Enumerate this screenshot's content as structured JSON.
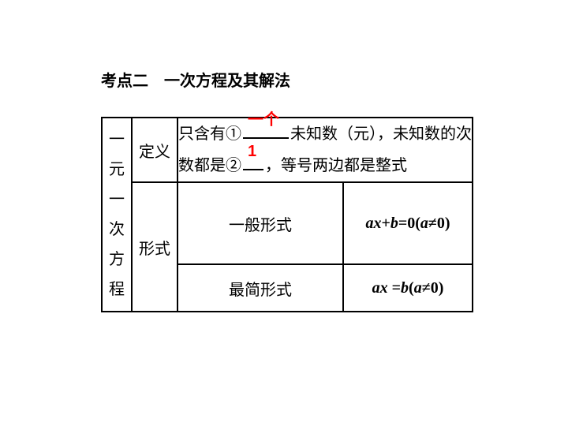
{
  "title": "考点二　一次方程及其解法",
  "table": {
    "topic": "一元一次方程",
    "definition": {
      "aspect": "定义",
      "pre1": "只含有①",
      "fill1": "一个",
      "mid1": "未知数（元），未知数的次数都是②",
      "fill2": "1",
      "post": "，等号两边都是整式"
    },
    "form": {
      "aspect": "形式",
      "rows": [
        {
          "label": "一般形式",
          "expr_a": "ax",
          "expr_b": "+",
          "expr_c": "b",
          "expr_d": "=0(",
          "expr_e": "a",
          "expr_f": "≠0)"
        },
        {
          "label": "最简形式",
          "expr_a": "ax ",
          "expr_b": "=",
          "expr_c": "b",
          "expr_d": "(",
          "expr_e": "a",
          "expr_f": "≠0)"
        }
      ]
    }
  },
  "colors": {
    "accent": "#ff0000",
    "text": "#000000",
    "bg": "#ffffff"
  }
}
